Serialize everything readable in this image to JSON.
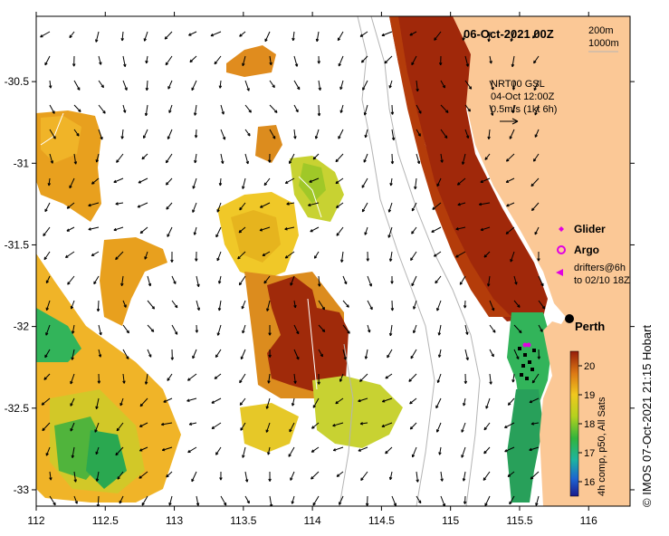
{
  "title": "06-Oct-2021 00Z",
  "depth_contours": [
    "200m",
    "1000m"
  ],
  "current_info": [
    "NRT00 GSL",
    "04-Oct 12:00Z",
    "0.5m/s (1kt 6h)"
  ],
  "legend": {
    "glider": "Glider",
    "argo": "Argo",
    "drifters": [
      "drifters@6h",
      "to 02/10 18Z"
    ]
  },
  "city": "Perth",
  "colorbar": {
    "ticks": [
      "20",
      "19",
      "18",
      "17",
      "16"
    ],
    "label": "4h comp, p50, All Sats",
    "min": 15.5,
    "max": 20.5
  },
  "credit": "© IMOS 07-Oct-2021 21:15 Hobart",
  "axes": {
    "lon_ticks": [
      "112",
      "112.5",
      "113",
      "113.5",
      "114",
      "114.5",
      "115",
      "115.5",
      "116"
    ],
    "lat_ticks": [
      "-30.5",
      "-31",
      "-31.5",
      "-32",
      "-32.5",
      "-33"
    ],
    "lon_range": [
      112,
      116.3
    ],
    "lat_range": [
      -30.1,
      -33.1
    ]
  },
  "colors": {
    "land": "#fbc896",
    "no_data": "#ffffff",
    "warm": "#a0280a",
    "cool": "#19aa50"
  }
}
